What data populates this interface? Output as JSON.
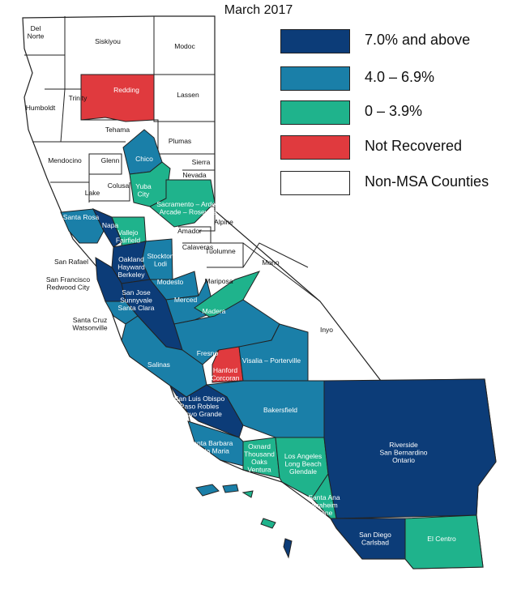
{
  "title": "March 2017",
  "colors": {
    "cat_7_plus": "#0c3c78",
    "cat_4_6": "#1a7fa8",
    "cat_0_3": "#1fb38c",
    "not_recovered": "#e03a3e",
    "non_msa": "#ffffff",
    "border": "#222222"
  },
  "legend": [
    {
      "key": "cat_7_plus",
      "label": "7.0% and above"
    },
    {
      "key": "cat_4_6",
      "label": "4.0 – 6.9%"
    },
    {
      "key": "cat_0_3",
      "label": "0 – 3.9%"
    },
    {
      "key": "not_recovered",
      "label": "Not Recovered"
    },
    {
      "key": "non_msa",
      "label": "Non-MSA Counties"
    }
  ],
  "region_categories": {
    "redding": "not_recovered",
    "hanford": "not_recovered",
    "chico": "cat_4_6",
    "yuba": "cat_0_3",
    "sacramento": "cat_0_3",
    "santa_rosa": "cat_4_6",
    "napa": "cat_7_plus",
    "vallejo": "cat_0_3",
    "stockton": "cat_4_6",
    "oakland": "cat_7_plus",
    "san_francisco": "cat_7_plus",
    "san_jose": "cat_7_plus",
    "santa_cruz": "cat_4_6",
    "modesto": "cat_4_6",
    "merced": "cat_4_6",
    "madera": "cat_0_3",
    "fresno": "cat_4_6",
    "salinas": "cat_4_6",
    "visalia": "cat_4_6",
    "slo": "cat_7_plus",
    "bakersfield": "cat_4_6",
    "santa_barbara": "cat_4_6",
    "oxnard": "cat_0_3",
    "los_angeles": "cat_0_3",
    "riverside": "cat_7_plus",
    "santa_ana": "cat_0_3",
    "san_diego": "cat_7_plus",
    "el_centro": "cat_0_3"
  },
  "labels": {
    "del_norte": "Del\nNorte",
    "siskiyou": "Siskiyou",
    "modoc": "Modoc",
    "redding": "Redding",
    "lassen": "Lassen",
    "humboldt": "Humboldt",
    "trinity": "Trinity",
    "tehama": "Tehama",
    "plumas": "Plumas",
    "chico": "Chico",
    "sierra": "Sierra",
    "nevada": "Nevada",
    "mendocino": "Mendocino",
    "glenn": "Glenn",
    "colusa": "Colusa",
    "yuba": "Yuba\nCity",
    "sacramento": "Sacramento – Arden\nArcade – Roseville",
    "lake": "Lake",
    "santa_rosa": "Santa Rosa",
    "napa": "Napa",
    "vallejo": "Vallejo\nFairfield",
    "alpine": "Alpine",
    "amador": "Amador",
    "calaveras": "Calaveras",
    "tuolumne": "Tuolumne",
    "mono": "Mono",
    "san_rafael": "San Rafael",
    "stockton": "Stockton\nLodi",
    "oakland": "Oakland\nHayward\nBerkeley",
    "san_francisco": "San Francisco\nRedwood City",
    "modesto": "Modesto",
    "mariposa": "Mariposa",
    "san_jose": "San Jose\nSunnyvale\nSanta Clara",
    "merced": "Merced",
    "madera": "Madera",
    "santa_cruz": "Santa Cruz\nWatsonville",
    "inyo": "Inyo",
    "fresno": "Fresno",
    "hanford": "Hanford\nCorcoran",
    "visalia": "Visalia – Porterville",
    "salinas": "Salinas",
    "slo": "San Luis Obispo\nPaso Robles\nArroyo Grande",
    "bakersfield": "Bakersfield",
    "riverside": "Riverside\nSan Bernardino\nOntario",
    "santa_barbara": "Santa Barbara\nSanta Maria",
    "oxnard": "Oxnard\nThousand\nOaks\nVentura",
    "los_angeles": "Los Angeles\nLong Beach\nGlendale",
    "santa_ana": "Santa Ana\nAnaheim\nIrvine",
    "san_diego": "San Diego\nCarlsbad",
    "el_centro": "El Centro"
  }
}
